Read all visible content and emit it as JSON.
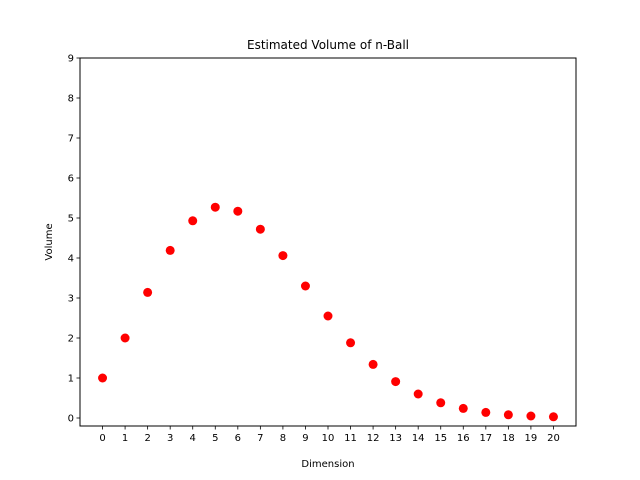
{
  "chart_data": {
    "type": "scatter",
    "title": "Estimated Volume of n-Ball",
    "xlabel": "Dimension",
    "ylabel": "Volume",
    "x": [
      0,
      1,
      2,
      3,
      4,
      5,
      6,
      7,
      8,
      9,
      10,
      11,
      12,
      13,
      14,
      15,
      16,
      17,
      18,
      19,
      20
    ],
    "series": [
      {
        "values": [
          1.0,
          2.0,
          3.14,
          4.19,
          4.93,
          5.27,
          5.17,
          4.72,
          4.06,
          3.3,
          2.55,
          1.88,
          1.34,
          0.91,
          0.6,
          0.38,
          0.24,
          0.14,
          0.08,
          0.05,
          0.03
        ],
        "color": "#ff0000"
      }
    ],
    "xticks": [
      "0",
      "1",
      "2",
      "3",
      "4",
      "5",
      "6",
      "7",
      "8",
      "9",
      "10",
      "11",
      "12",
      "13",
      "14",
      "15",
      "16",
      "17",
      "18",
      "19",
      "20"
    ],
    "yticks": [
      "0",
      "1",
      "2",
      "3",
      "4",
      "5",
      "6",
      "7",
      "8",
      "9"
    ],
    "xlim": [
      -1,
      21
    ],
    "ylim": [
      -0.2,
      9
    ],
    "grid": false,
    "legend": "none"
  }
}
